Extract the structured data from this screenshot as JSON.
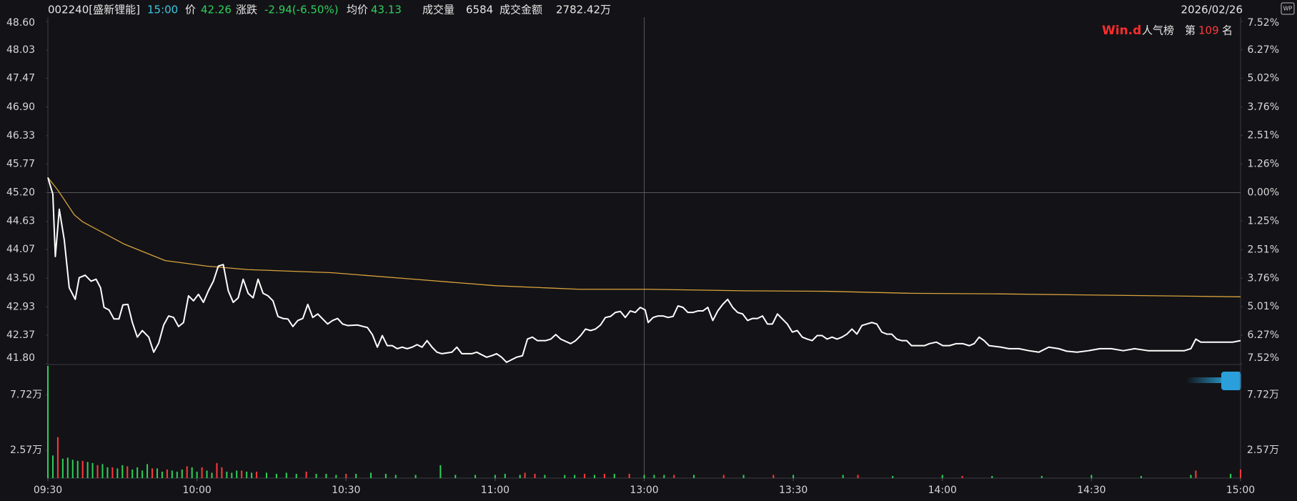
{
  "header": {
    "code": "002240[盛新锂能]",
    "time": "15:00",
    "price_label": "价",
    "price": "42.26",
    "change_label": "涨跌",
    "change": "-2.94(-6.50%)",
    "avg_label": "均价",
    "avg": "43.13",
    "volume_label": "成交量",
    "volume": "6584",
    "amount_label": "成交金额",
    "amount": "2782.42万",
    "date": "2026/02/26",
    "corner_icon": "WP"
  },
  "badge": {
    "brand": "Win.d",
    "board": "人气榜",
    "rank_prefix": "第",
    "rank": "109",
    "rank_suffix": "名"
  },
  "chart_data": [
    {
      "type": "line",
      "xlim": [
        0,
        240
      ],
      "xticks": [
        {
          "value": 0,
          "label": "09:30"
        },
        {
          "value": 30,
          "label": "10:00"
        },
        {
          "value": 60,
          "label": "10:30"
        },
        {
          "value": 90,
          "label": "11:00"
        },
        {
          "value": 120,
          "label": "13:00"
        },
        {
          "value": 150,
          "label": "13:30"
        },
        {
          "value": 180,
          "label": "14:00"
        },
        {
          "value": 210,
          "label": "14:30"
        },
        {
          "value": 240,
          "label": "15:00"
        }
      ],
      "ylim": [
        41.8,
        48.6
      ],
      "yticks": [
        {
          "value": 48.6,
          "label": "48.60"
        },
        {
          "value": 48.03,
          "label": "48.03"
        },
        {
          "value": 47.47,
          "label": "47.47"
        },
        {
          "value": 46.9,
          "label": "46.90"
        },
        {
          "value": 46.33,
          "label": "46.33"
        },
        {
          "value": 45.77,
          "label": "45.77"
        },
        {
          "value": 45.2,
          "label": "45.20"
        },
        {
          "value": 44.63,
          "label": "44.63"
        },
        {
          "value": 44.07,
          "label": "44.07"
        },
        {
          "value": 43.5,
          "label": "43.50"
        },
        {
          "value": 42.93,
          "label": "42.93"
        },
        {
          "value": 42.37,
          "label": "42.37"
        },
        {
          "value": 41.8,
          "label": "41.80"
        }
      ],
      "y2lim": [
        -7.52,
        7.52
      ],
      "y2ticks": [
        {
          "value": 7.52,
          "label": "7.52%"
        },
        {
          "value": 6.27,
          "label": "6.27%"
        },
        {
          "value": 5.02,
          "label": "5.02%"
        },
        {
          "value": 3.76,
          "label": "3.76%"
        },
        {
          "value": 2.51,
          "label": "2.51%"
        },
        {
          "value": 1.26,
          "label": "1.26%"
        },
        {
          "value": 0,
          "label": "0.00%"
        },
        {
          "value": -1.25,
          "label": "1.25%"
        },
        {
          "value": -2.51,
          "label": "2.51%"
        },
        {
          "value": -3.76,
          "label": "3.76%"
        },
        {
          "value": -5.01,
          "label": "5.01%"
        },
        {
          "value": -6.27,
          "label": "6.27%"
        },
        {
          "value": -7.52,
          "label": "7.52%"
        }
      ],
      "series": [
        {
          "color": "#ffffff",
          "x": [
            0,
            1,
            1.5,
            2.3,
            3.3,
            4.3,
            5.5,
            6.3,
            7.5,
            8.7,
            9.7,
            10.6,
            11.3,
            12.3,
            13.3,
            14.3,
            15.1,
            16.1,
            17,
            18,
            19,
            20.3,
            21.3,
            22.3,
            23.3,
            24.3,
            25.3,
            26.3,
            27.3,
            28.3,
            29.3,
            30.3,
            31.3,
            32.3,
            33.3,
            34.3,
            35.3,
            36.3,
            37.3,
            38.3,
            39.3,
            40.3,
            41.3,
            42.3,
            43.3,
            44.3,
            45.3,
            46.3,
            47.3,
            48.3,
            49.3,
            50.3,
            51.3,
            52.3,
            53.3,
            54.3,
            55.3,
            56.3,
            57.3,
            58.3,
            59.3,
            60.3,
            62.3,
            64.3,
            65.3,
            66.3,
            67.3,
            68.3,
            69.3,
            70.3,
            71.3,
            72.3,
            73.3,
            74.3,
            75.3,
            76.3,
            77.3,
            78.3,
            79.3,
            81.3,
            82.3,
            83.3,
            85.3,
            86.3,
            88.3,
            89.3,
            90.3,
            91.3,
            92.3,
            93.3,
            94.3,
            95.5,
            96.5,
            97.5,
            98.5,
            100.2,
            101.2,
            102.2,
            103.2,
            105.2,
            106.2,
            107.2,
            108.2,
            109.2,
            110.2,
            111.2,
            112.2,
            113.2,
            114.2,
            115.2,
            116.2,
            117.2,
            118.2,
            119.2,
            120.2,
            120.8,
            121.8,
            122.8,
            123.8,
            124.8,
            125.8,
            126.8,
            127.8,
            128.8,
            129.8,
            130.8,
            131.8,
            132.8,
            133.8,
            134.8,
            135.8,
            136.8,
            137.8,
            138.8,
            139.8,
            140.8,
            141.8,
            142.8,
            143.8,
            144.8,
            145.8,
            146.8,
            147.8,
            148.8,
            149.8,
            150.8,
            151.8,
            152.8,
            153.8,
            154.8,
            155.8,
            156.8,
            157.8,
            158.8,
            159.8,
            160.8,
            161.8,
            162.8,
            163.8,
            164.8,
            165.8,
            166.8,
            167.8,
            168.8,
            169.8,
            170.8,
            171.8,
            172.8,
            173.8,
            175.1,
            176.4,
            177.4,
            178.8,
            180.1,
            181.4,
            182.8,
            184.1,
            185.4,
            186.4,
            187.4,
            188.4,
            189.4,
            191.8,
            193.4,
            195.4,
            197.4,
            199.4,
            201.4,
            203.4,
            205,
            207.1,
            209.4,
            211.7,
            214,
            216.4,
            218.7,
            221.4,
            224,
            226.4,
            228.7,
            230,
            231,
            232,
            235,
            238.4,
            240
          ],
          "values": [
            45.5,
            45.17,
            43.93,
            44.87,
            44.26,
            43.31,
            43.08,
            43.51,
            43.56,
            43.44,
            43.48,
            43.31,
            42.92,
            42.87,
            42.69,
            42.69,
            42.97,
            42.98,
            42.62,
            42.33,
            42.46,
            42.33,
            42.03,
            42.21,
            42.57,
            42.75,
            42.72,
            42.54,
            42.62,
            43.15,
            43.05,
            43.18,
            43.02,
            43.25,
            43.44,
            43.74,
            43.77,
            43.25,
            43.02,
            43.11,
            43.48,
            43.2,
            43.11,
            43.48,
            43.2,
            43.15,
            43.05,
            42.74,
            42.7,
            42.69,
            42.54,
            42.66,
            42.7,
            42.98,
            42.72,
            42.79,
            42.69,
            42.59,
            42.66,
            42.7,
            42.59,
            42.56,
            42.57,
            42.52,
            42.38,
            42.13,
            42.36,
            42.16,
            42.16,
            42.1,
            42.13,
            42.1,
            42.13,
            42.18,
            42.13,
            42.26,
            42.13,
            42.03,
            42.0,
            42.03,
            42.13,
            42.0,
            42.0,
            42.03,
            41.93,
            41.96,
            42.0,
            41.93,
            41.83,
            41.88,
            41.93,
            41.96,
            42.29,
            42.33,
            42.26,
            42.26,
            42.29,
            42.38,
            42.29,
            42.2,
            42.26,
            42.36,
            42.49,
            42.46,
            42.49,
            42.57,
            42.72,
            42.74,
            42.82,
            42.84,
            42.72,
            42.85,
            42.82,
            42.92,
            42.87,
            42.62,
            42.72,
            42.75,
            42.75,
            42.72,
            42.74,
            42.95,
            42.92,
            42.82,
            42.82,
            42.85,
            42.85,
            42.92,
            42.66,
            42.85,
            42.98,
            43.08,
            42.92,
            42.82,
            42.79,
            42.66,
            42.7,
            42.7,
            42.75,
            42.59,
            42.59,
            42.79,
            42.69,
            42.59,
            42.43,
            42.46,
            42.33,
            42.29,
            42.26,
            42.36,
            42.36,
            42.29,
            42.33,
            42.29,
            42.33,
            42.39,
            42.49,
            42.39,
            42.56,
            42.59,
            42.62,
            42.59,
            42.43,
            42.39,
            42.39,
            42.29,
            42.26,
            42.26,
            42.16,
            42.16,
            42.16,
            42.2,
            42.23,
            42.16,
            42.16,
            42.2,
            42.2,
            42.16,
            42.2,
            42.33,
            42.26,
            42.16,
            42.13,
            42.1,
            42.1,
            42.06,
            42.03,
            42.13,
            42.1,
            42.05,
            42.03,
            42.06,
            42.1,
            42.1,
            42.06,
            42.1,
            42.06,
            42.06,
            42.06,
            42.06,
            42.1,
            42.29,
            42.23,
            42.23,
            42.23,
            42.26
          ]
        },
        {
          "color": "#d9a23c",
          "x": [
            0,
            2,
            3.7,
            5.3,
            7,
            15.3,
            23.6,
            32,
            40.3,
            57,
            73.6,
            90.2,
            106.9,
            120.7,
            140.1,
            156.8,
            173.4,
            190.1,
            206.7,
            223.4,
            240
          ],
          "values": [
            45.5,
            45.25,
            45.0,
            44.76,
            44.62,
            44.18,
            43.85,
            43.74,
            43.67,
            43.61,
            43.48,
            43.35,
            43.28,
            43.28,
            43.25,
            43.24,
            43.2,
            43.19,
            43.17,
            43.15,
            43.13
          ]
        }
      ]
    },
    {
      "type": "bar",
      "xlim": [
        0,
        240
      ],
      "ylim": [
        0,
        10.4
      ],
      "yticks": [
        {
          "value": 7.72,
          "label": "7.72万"
        },
        {
          "value": 2.57,
          "label": "2.57万"
        }
      ],
      "series": [
        {
          "color": "#ff3a3a",
          "x": [
            2,
            7,
            10,
            13,
            16,
            21,
            24,
            28,
            31,
            34,
            35,
            39,
            42,
            52,
            60,
            96,
            98,
            108,
            112,
            117,
            126,
            136,
            146,
            163,
            184,
            231,
            240
          ],
          "values": [
            3.8,
            1.6,
            1.2,
            1.0,
            1.1,
            0.9,
            0.8,
            1.1,
            1.0,
            1.4,
            1.0,
            0.7,
            0.6,
            0.6,
            0.4,
            0.5,
            0.4,
            0.4,
            0.4,
            0.4,
            0.3,
            0.3,
            0.3,
            0.3,
            0.2,
            0.7,
            0.8
          ]
        },
        {
          "color": "#2fcf5a",
          "x": [
            0,
            1,
            3,
            4,
            5,
            6,
            8,
            9,
            11,
            12,
            14,
            15,
            17,
            18,
            19,
            20,
            22,
            23,
            25,
            26,
            27,
            29,
            30,
            32,
            33,
            36,
            37,
            38,
            40,
            41,
            44,
            46,
            48,
            50,
            54,
            56,
            58,
            62,
            65,
            68,
            70,
            74,
            79,
            82,
            86,
            90,
            92,
            95,
            100,
            104,
            106,
            110,
            114,
            120,
            122,
            124,
            130,
            140,
            150,
            160,
            170,
            180,
            190,
            200,
            210,
            220,
            230,
            238
          ],
          "values": [
            10.4,
            2.1,
            1.8,
            1.9,
            1.7,
            1.6,
            1.5,
            1.4,
            1.3,
            1.0,
            0.9,
            1.2,
            0.8,
            1.0,
            0.7,
            1.3,
            0.9,
            0.6,
            0.7,
            0.6,
            0.8,
            1.0,
            0.6,
            0.7,
            0.5,
            0.6,
            0.5,
            0.7,
            0.6,
            0.5,
            0.5,
            0.4,
            0.5,
            0.4,
            0.4,
            0.4,
            0.3,
            0.4,
            0.5,
            0.4,
            0.3,
            0.3,
            1.2,
            0.3,
            0.3,
            0.3,
            0.4,
            0.3,
            0.3,
            0.3,
            0.3,
            0.3,
            0.4,
            0.3,
            0.3,
            0.3,
            0.3,
            0.3,
            0.3,
            0.3,
            0.2,
            0.3,
            0.2,
            0.2,
            0.3,
            0.2,
            0.3,
            0.4
          ]
        }
      ]
    }
  ]
}
